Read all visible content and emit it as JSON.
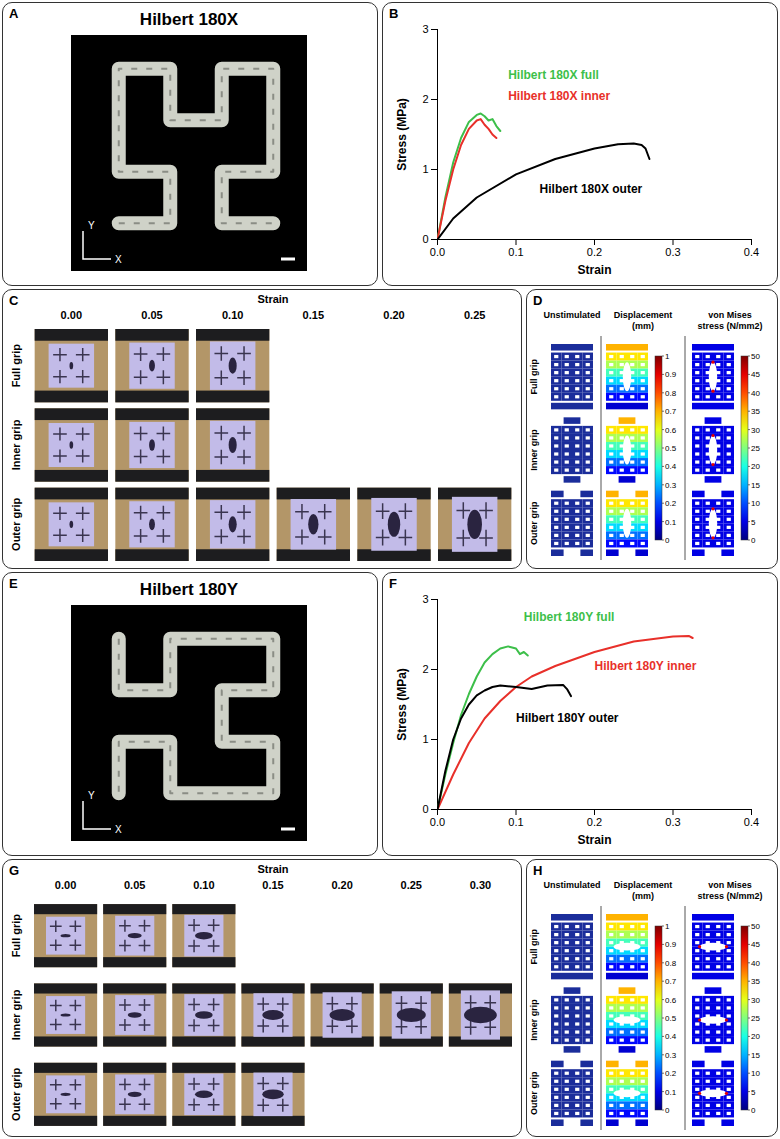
{
  "chart_data": [
    {
      "letter": "B",
      "type": "line",
      "x_label": "Strain",
      "y_label": "Stress (MPa)",
      "xlim": [
        0,
        0.4
      ],
      "xticks": [
        {
          "value": 0,
          "label": "0.0"
        },
        0.1,
        0.2,
        0.3,
        0.4
      ],
      "ylim": [
        0,
        3
      ],
      "yticks": [
        0,
        1,
        2,
        3
      ],
      "series": [
        {
          "name": "Hilbert 180X full",
          "color": "#3dbf4a",
          "x": [
            0,
            0.01,
            0.02,
            0.03,
            0.04,
            0.05,
            0.055,
            0.06,
            0.065,
            0.07,
            0.075,
            0.08
          ],
          "values": [
            0,
            0.6,
            1.1,
            1.45,
            1.68,
            1.78,
            1.8,
            1.76,
            1.7,
            1.72,
            1.62,
            1.55
          ]
        },
        {
          "name": "Hilbert 180X inner",
          "color": "#e8302a",
          "x": [
            0,
            0.01,
            0.02,
            0.03,
            0.04,
            0.05,
            0.055,
            0.06,
            0.065,
            0.07,
            0.075
          ],
          "values": [
            0,
            0.55,
            1.0,
            1.35,
            1.58,
            1.7,
            1.72,
            1.64,
            1.58,
            1.5,
            1.45
          ]
        },
        {
          "name": "Hilbert 180X outer",
          "color": "#000000",
          "x": [
            0,
            0.02,
            0.05,
            0.1,
            0.15,
            0.2,
            0.23,
            0.25,
            0.26,
            0.265,
            0.27
          ],
          "values": [
            0,
            0.3,
            0.6,
            0.93,
            1.15,
            1.3,
            1.36,
            1.37,
            1.35,
            1.3,
            1.15
          ]
        }
      ]
    },
    {
      "letter": "F",
      "type": "line",
      "x_label": "Strain",
      "y_label": "Stress (MPa)",
      "xlim": [
        0,
        0.4
      ],
      "xticks": [
        {
          "value": 0,
          "label": "0.0"
        },
        0.1,
        0.2,
        0.3,
        0.4
      ],
      "ylim": [
        0,
        3
      ],
      "yticks": [
        0,
        1,
        2,
        3
      ],
      "series": [
        {
          "name": "Hilbert 180Y full",
          "color": "#3dbf4a",
          "x": [
            0,
            0.01,
            0.02,
            0.03,
            0.04,
            0.05,
            0.06,
            0.07,
            0.08,
            0.09,
            0.1,
            0.105,
            0.11,
            0.115
          ],
          "values": [
            0,
            0.5,
            0.95,
            1.35,
            1.65,
            1.9,
            2.1,
            2.22,
            2.3,
            2.33,
            2.3,
            2.22,
            2.25,
            2.2
          ]
        },
        {
          "name": "Hilbert 180Y inner",
          "color": "#e8302a",
          "x": [
            0,
            0.02,
            0.04,
            0.06,
            0.08,
            0.1,
            0.12,
            0.15,
            0.2,
            0.25,
            0.3,
            0.32,
            0.325
          ],
          "values": [
            0,
            0.5,
            0.95,
            1.3,
            1.55,
            1.75,
            1.9,
            2.05,
            2.25,
            2.4,
            2.47,
            2.48,
            2.45
          ]
        },
        {
          "name": "Hilbert 180Y outer",
          "color": "#000000",
          "x": [
            0,
            0.01,
            0.02,
            0.03,
            0.04,
            0.05,
            0.06,
            0.07,
            0.08,
            0.1,
            0.12,
            0.14,
            0.16,
            0.165,
            0.17
          ],
          "values": [
            0,
            0.55,
            1.0,
            1.3,
            1.5,
            1.63,
            1.7,
            1.75,
            1.77,
            1.75,
            1.72,
            1.77,
            1.78,
            1.72,
            1.62
          ]
        }
      ]
    }
  ],
  "panels": {
    "A": {
      "letter": "A",
      "title": "Hilbert 180X",
      "axes": [
        "Y",
        "X"
      ]
    },
    "C": {
      "letter": "C",
      "header": "Strain",
      "columns": [
        {
          "value": 0,
          "label": "0.00"
        },
        {
          "value": 0.05,
          "label": "0.05"
        },
        {
          "value": 0.1,
          "label": "0.10"
        },
        {
          "value": 0.15,
          "label": "0.15"
        },
        {
          "value": 0.2,
          "label": "0.20"
        },
        {
          "value": 0.25,
          "label": "0.25"
        }
      ],
      "rows": [
        {
          "label": "Full grip",
          "frames": 3
        },
        {
          "label": "Inner grip",
          "frames": 3
        },
        {
          "label": "Outer grip",
          "frames": 6
        }
      ]
    },
    "D": {
      "letter": "D",
      "columns": [
        "Unstimulated",
        "Displacement (mm)",
        "von Mises stress (N/mm2)"
      ],
      "rows": [
        "Full grip",
        "Inner grip",
        "Outer grip"
      ],
      "displacement_colorbar": {
        "range": [
          0,
          1
        ],
        "ticks": [
          0,
          0.1,
          0.2,
          0.3,
          0.4,
          0.5,
          0.6,
          0.7,
          0.8,
          0.9,
          1
        ]
      },
      "stress_colorbar": {
        "range": [
          0,
          50
        ],
        "ticks": [
          0,
          5,
          10,
          15,
          20,
          25,
          30,
          35,
          40,
          45,
          50
        ]
      }
    },
    "E": {
      "letter": "E",
      "title": "Hilbert 180Y",
      "axes": [
        "Y",
        "X"
      ]
    },
    "G": {
      "letter": "G",
      "header": "Strain",
      "columns": [
        {
          "value": 0,
          "label": "0.00"
        },
        {
          "value": 0.05,
          "label": "0.05"
        },
        {
          "value": 0.1,
          "label": "0.10"
        },
        {
          "value": 0.15,
          "label": "0.15"
        },
        {
          "value": 0.2,
          "label": "0.20"
        },
        {
          "value": 0.25,
          "label": "0.25"
        },
        {
          "value": 0.3,
          "label": "0.30"
        }
      ],
      "rows": [
        {
          "label": "Full grip",
          "frames": 3
        },
        {
          "label": "Inner grip",
          "frames": 7
        },
        {
          "label": "Outer grip",
          "frames": 4
        }
      ]
    },
    "H": {
      "letter": "H",
      "columns": [
        "Unstimulated",
        "Displacement (mm)",
        "von Mises stress (N/mm2)"
      ],
      "rows": [
        "Full grip",
        "Inner grip",
        "Outer grip"
      ],
      "displacement_colorbar": {
        "range": [
          0,
          1
        ],
        "ticks": [
          0,
          0.1,
          0.2,
          0.3,
          0.4,
          0.5,
          0.6,
          0.7,
          0.8,
          0.9,
          1
        ]
      },
      "stress_colorbar": {
        "range": [
          0,
          50
        ],
        "ticks": [
          0,
          5,
          10,
          15,
          20,
          25,
          30,
          35,
          40,
          45,
          50
        ]
      }
    }
  }
}
